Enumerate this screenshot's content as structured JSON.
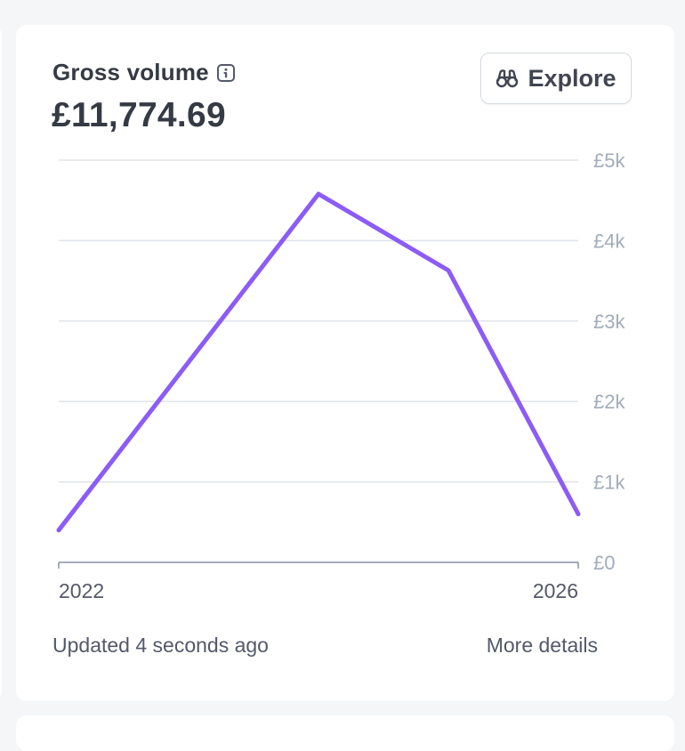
{
  "header": {
    "title": "Gross volume",
    "amount": "£11,774.69",
    "info_icon": "info-icon",
    "explore_label": "Explore",
    "explore_icon": "binoculars-icon"
  },
  "chart_data": {
    "type": "line",
    "x": [
      2022,
      2024,
      2025,
      2026
    ],
    "series": [
      {
        "values": [
          400,
          4580,
          3630,
          600
        ],
        "color": "#8b5cf6"
      }
    ],
    "y_ticks": [
      0,
      1000,
      2000,
      3000,
      4000,
      5000
    ],
    "y_tick_labels": [
      "£0",
      "£1k",
      "£2k",
      "£3k",
      "£4k",
      "£5k"
    ],
    "x_tick_labels": [
      "2022",
      "2026"
    ],
    "xlim": [
      2022,
      2026
    ],
    "ylim": [
      0,
      5000
    ],
    "grid": true,
    "y_axis_side": "right"
  },
  "footer": {
    "updated": "Updated 4 seconds ago",
    "more_details": "More details"
  },
  "colors": {
    "line": "#8b5cf6",
    "grid": "#dfe3ea",
    "axis_text": "#a3acba",
    "title_text": "#353a44"
  }
}
